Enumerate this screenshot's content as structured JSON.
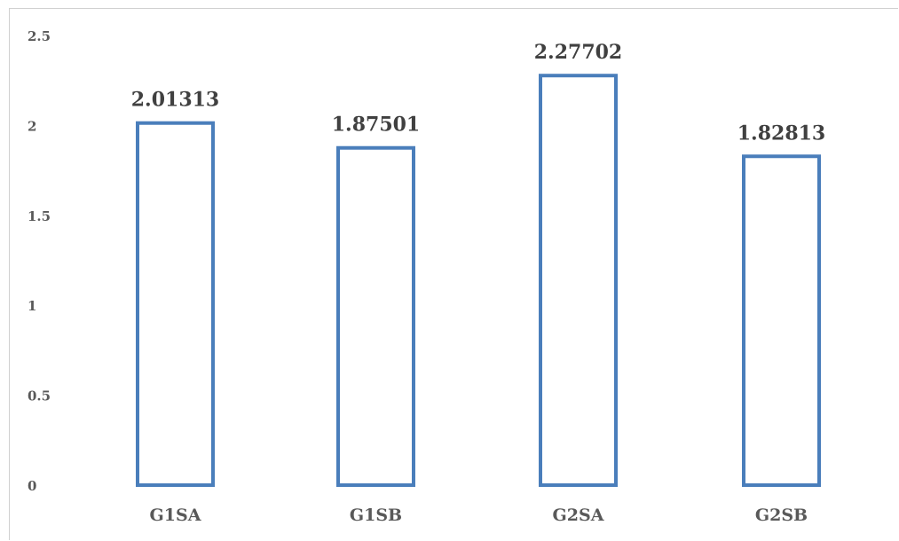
{
  "chart_data": {
    "type": "bar",
    "categories": [
      "G1SA",
      "G1SB",
      "G2SA",
      "G2SB"
    ],
    "values": [
      2.01313,
      1.87501,
      2.27702,
      1.82813
    ],
    "data_labels": [
      "2.01313",
      "1.87501",
      "2.27702",
      "1.82813"
    ],
    "title": "",
    "xlabel": "",
    "ylabel": "",
    "ylim": [
      0,
      2.5
    ],
    "yticks": [
      0,
      0.5,
      1,
      1.5,
      2,
      2.5
    ],
    "ytick_labels": [
      "0",
      "0.5",
      "1",
      "1.5",
      "2",
      "2.5"
    ],
    "grid": false,
    "legend": "none",
    "bar_style": "outline",
    "colors": {
      "bar_outline": "#4a7ebb",
      "bar_fill": "#ffffff",
      "tick_text": "#595959",
      "data_label_text": "#404040",
      "frame": "#d0d0d0"
    }
  }
}
